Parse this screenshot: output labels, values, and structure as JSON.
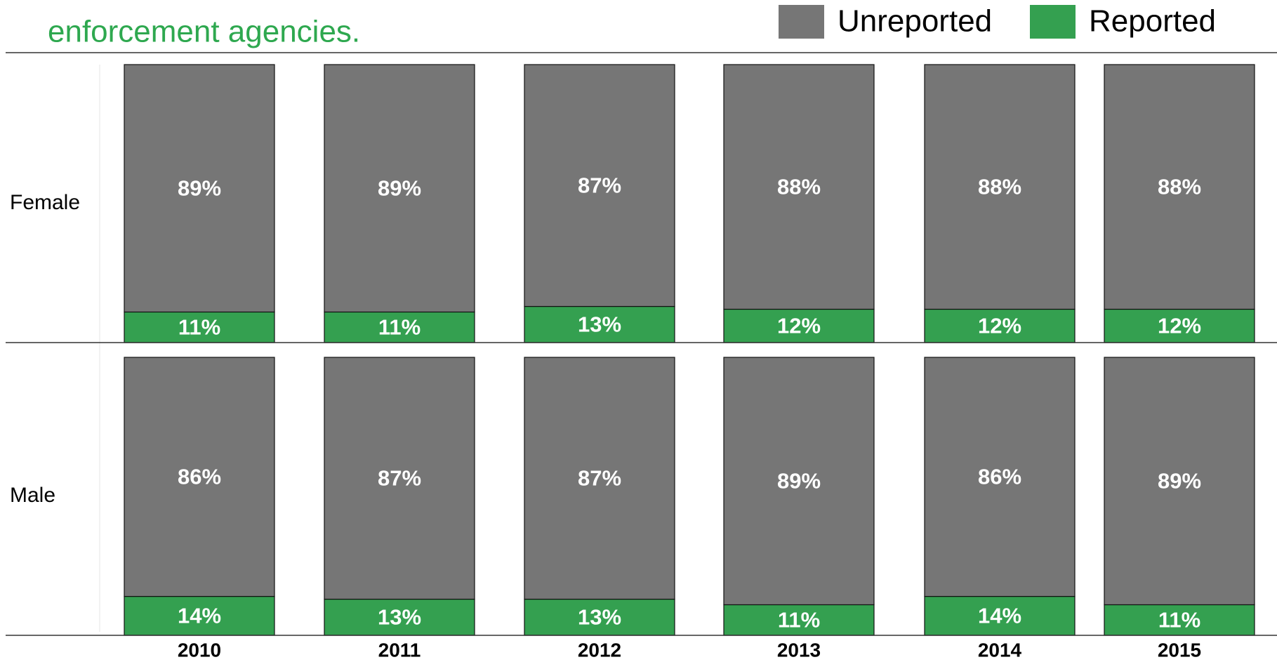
{
  "chart_data": {
    "type": "bar",
    "stacked": true,
    "title": "enforcement agencies.",
    "categories": [
      "2010",
      "2011",
      "2012",
      "2013",
      "2014",
      "2015"
    ],
    "panels": [
      "Female",
      "Male"
    ],
    "series": [
      {
        "name": "Unreported",
        "color": "#767676",
        "values": [
          [
            89,
            89,
            87,
            88,
            88,
            88
          ],
          [
            86,
            87,
            87,
            89,
            86,
            89
          ]
        ],
        "value_labels": [
          [
            "89%",
            "89%",
            "87%",
            "88%",
            "88%",
            "88%"
          ],
          [
            "86%",
            "87%",
            "87%",
            "89%",
            "86%",
            "89%"
          ]
        ]
      },
      {
        "name": "Reported",
        "color": "#34a050",
        "values": [
          [
            11,
            11,
            13,
            12,
            12,
            12
          ],
          [
            14,
            13,
            13,
            11,
            14,
            11
          ]
        ],
        "value_labels": [
          [
            "11%",
            "11%",
            "13%",
            "12%",
            "12%",
            "12%"
          ],
          [
            "14%",
            "13%",
            "13%",
            "11%",
            "14%",
            "11%"
          ]
        ]
      }
    ],
    "legend": "top-right"
  }
}
